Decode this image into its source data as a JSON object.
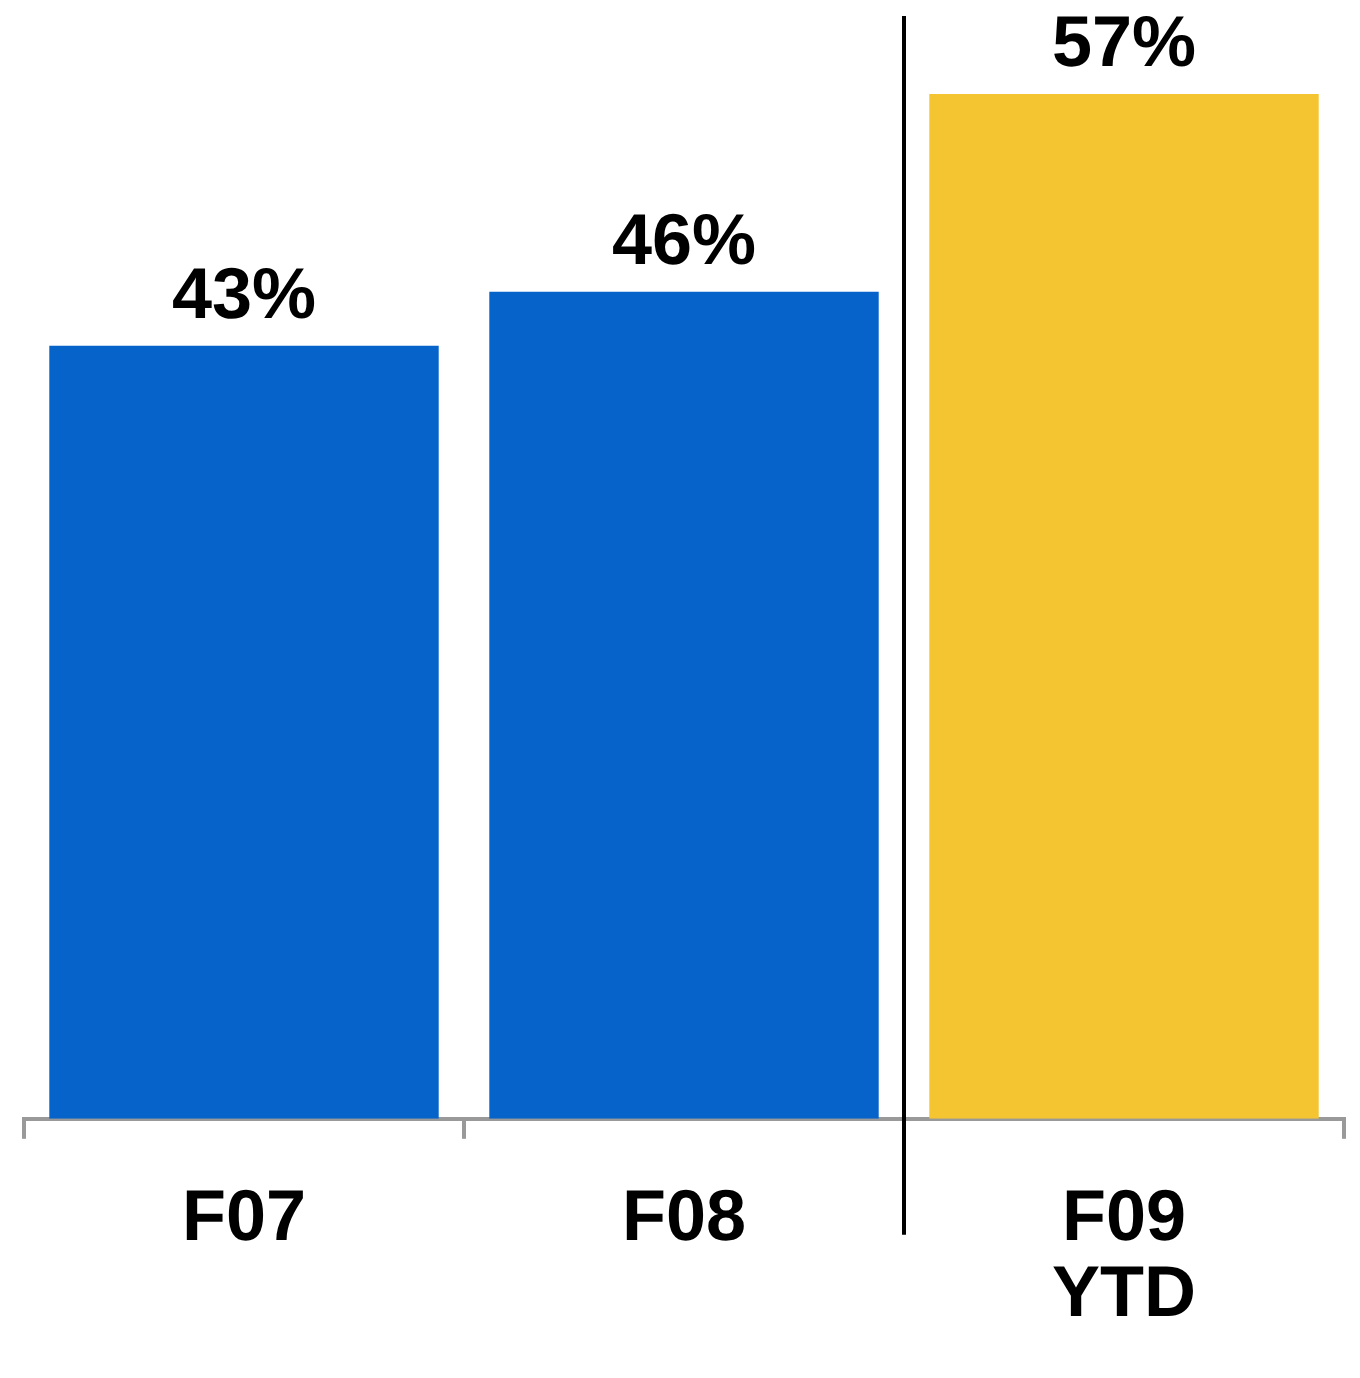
{
  "chart_data": {
    "type": "bar",
    "categories": [
      "F07",
      "F08",
      "F09 YTD"
    ],
    "values": [
      43,
      46,
      57
    ],
    "value_labels": [
      "43%",
      "46%",
      "57%"
    ],
    "colors": [
      "#0563c9",
      "#0563c9",
      "#f5c431"
    ],
    "grid": false,
    "legend": false,
    "tick_labels": "x"
  }
}
